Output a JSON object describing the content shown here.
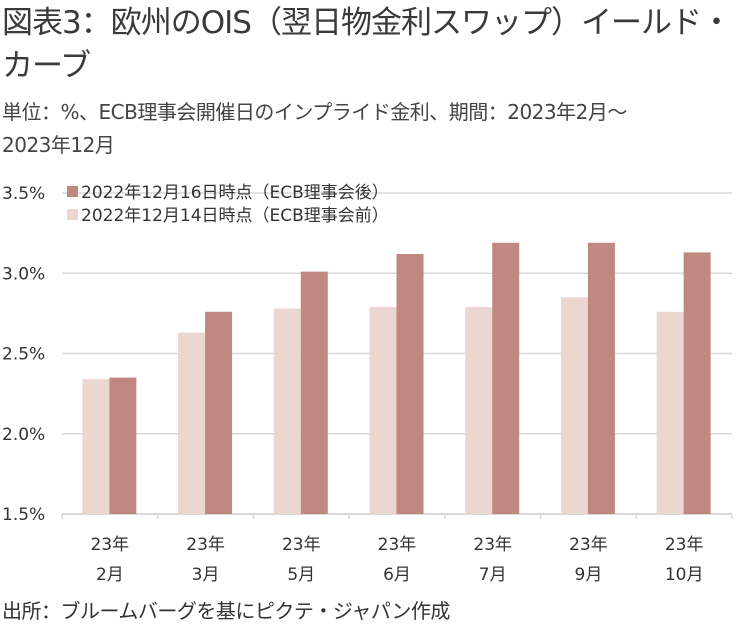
{
  "title": {
    "line1": "図表3：欧州のOIS（翌日物金利スワップ）イールド・",
    "line2": "カーブ"
  },
  "subtitle": {
    "line1": "単位：%、ECB理事会開催日のインプライド金利、期間：2023年2月～",
    "line2": "2023年12月"
  },
  "footer": "出所：ブルームバーグを基にピクテ・ジャパン作成",
  "colors": {
    "after": "#bf8880",
    "before": "#ecd6d0",
    "grid": "#d9d9d9"
  },
  "chart_data": {
    "type": "bar",
    "title": "欧州のOIS（翌日物金利スワップ）イールド・カーブ",
    "xlabel": "",
    "ylabel": "%",
    "ylim": [
      1.5,
      3.5
    ],
    "yticks": [
      "3.5%",
      "3.0%",
      "2.5%",
      "2.0%",
      "1.5%"
    ],
    "ytick_values": [
      3.5,
      3.0,
      2.5,
      2.0,
      1.5
    ],
    "grid": true,
    "legend_position": "top-left",
    "categories": [
      {
        "line1": "23年",
        "line2": "2月"
      },
      {
        "line1": "23年",
        "line2": "3月"
      },
      {
        "line1": "23年",
        "line2": "5月"
      },
      {
        "line1": "23年",
        "line2": "6月"
      },
      {
        "line1": "23年",
        "line2": "7月"
      },
      {
        "line1": "23年",
        "line2": "9月"
      },
      {
        "line1": "23年",
        "line2": "10月"
      }
    ],
    "series": [
      {
        "name": "2022年12月14日時点（ECB理事会前）",
        "key": "before",
        "values": [
          2.34,
          2.63,
          2.78,
          2.79,
          2.79,
          2.85,
          2.76
        ]
      },
      {
        "name": "2022年12月16日時点（ECB理事会後）",
        "key": "after",
        "values": [
          2.35,
          2.76,
          3.01,
          3.12,
          3.19,
          3.19,
          3.13
        ]
      }
    ],
    "legend_order": [
      1,
      0
    ]
  }
}
